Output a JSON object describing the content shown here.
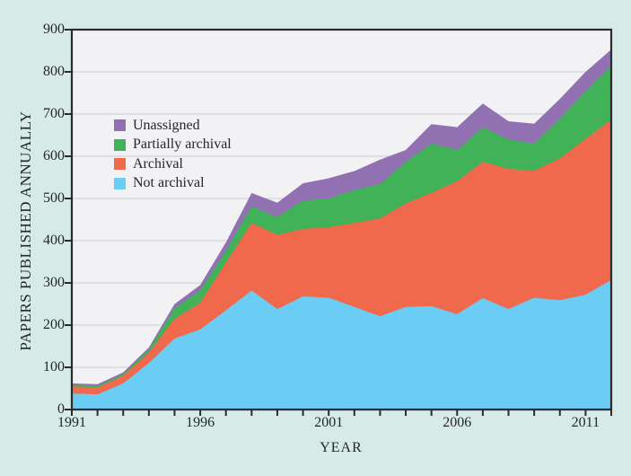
{
  "figure": {
    "background_color": "#d6ebe7",
    "plot_background_color": "#f2f2f4",
    "grid_color": "#d9d9de",
    "axis_color": "#2b2b2e",
    "text_color": "#26262a"
  },
  "chart_data": {
    "type": "area",
    "stacked": true,
    "title": "",
    "xlabel": "YEAR",
    "ylabel": "PAPERS PUBLISHED ANNUALLY",
    "xlim": [
      1991,
      2012
    ],
    "ylim": [
      0,
      900
    ],
    "grid": "horizontal",
    "legend_position": "upper-left-inside",
    "x": [
      1991,
      1992,
      1993,
      1994,
      1995,
      1996,
      1997,
      1998,
      1999,
      2000,
      2001,
      2002,
      2003,
      2004,
      2005,
      2006,
      2007,
      2008,
      2009,
      2010,
      2011,
      2012
    ],
    "series": [
      {
        "name": "Not archival",
        "color": "#6bcdf4",
        "values": [
          38,
          36,
          62,
          110,
          168,
          190,
          235,
          282,
          238,
          268,
          265,
          243,
          221,
          243,
          245,
          226,
          264,
          238,
          265,
          259,
          272,
          307
        ]
      },
      {
        "name": "Archival",
        "color": "#f0694c",
        "values": [
          17,
          16,
          18,
          25,
          47,
          63,
          113,
          160,
          176,
          160,
          167,
          199,
          232,
          245,
          268,
          315,
          323,
          332,
          301,
          336,
          369,
          380
        ]
      },
      {
        "name": "Partially archival",
        "color": "#41b257",
        "values": [
          4,
          4,
          4,
          7,
          25,
          30,
          28,
          39,
          42,
          67,
          68,
          78,
          81,
          99,
          117,
          74,
          82,
          70,
          64,
          95,
          113,
          128
        ]
      },
      {
        "name": "Unassigned",
        "color": "#9271b3",
        "values": [
          3,
          4,
          4,
          5,
          10,
          12,
          20,
          32,
          34,
          41,
          48,
          45,
          58,
          28,
          46,
          54,
          56,
          43,
          47,
          46,
          46,
          38
        ]
      }
    ],
    "legend_order": [
      "Unassigned",
      "Partially archival",
      "Archival",
      "Not archival"
    ],
    "y_ticks": [
      0,
      100,
      200,
      300,
      400,
      500,
      600,
      700,
      800,
      900
    ],
    "x_tick_labels": [
      1991,
      1996,
      2001,
      2006,
      2011
    ],
    "x_minor_tick_step_years": 1
  }
}
